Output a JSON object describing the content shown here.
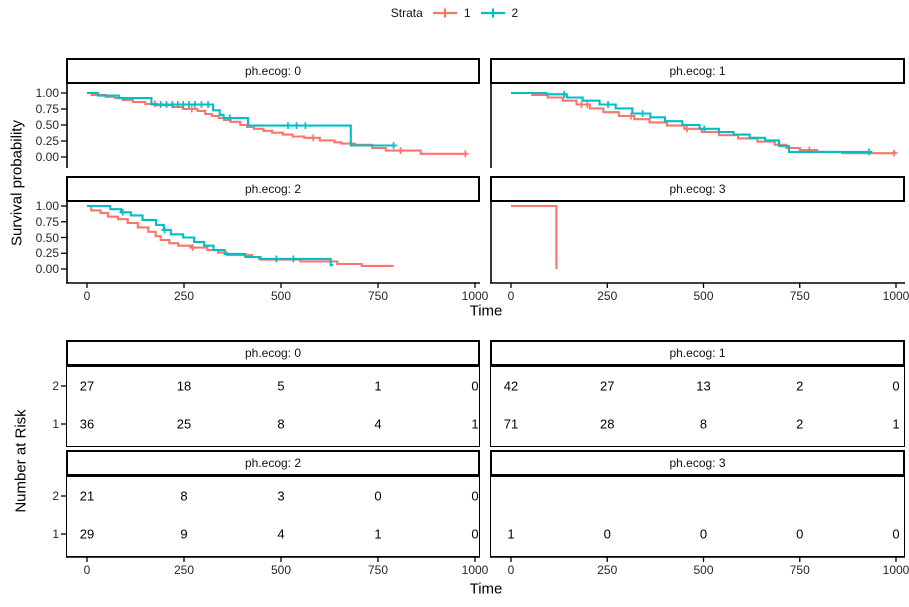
{
  "legend": {
    "title": "Strata",
    "items": [
      {
        "label": "1",
        "color": "#F8766D"
      },
      {
        "label": "2",
        "color": "#00BFC4"
      }
    ]
  },
  "axes": {
    "time_label": "Time",
    "time_ticks": [
      "0",
      "250",
      "500",
      "750",
      "1000"
    ],
    "time_tick_values": [
      0,
      250,
      500,
      750,
      1000
    ],
    "survival_label": "Survival probability",
    "survival_ticks": [
      "1.00",
      "0.75",
      "0.50",
      "0.25",
      "0.00"
    ],
    "survival_tick_values": [
      1.0,
      0.75,
      0.5,
      0.25,
      0.0
    ],
    "risk_label": "Number at Risk",
    "risk_row_labels": [
      "2",
      "1"
    ]
  },
  "chart_data": {
    "type": "line",
    "subtype": "kaplan-meier-faceted-with-risk-table",
    "x_range": [
      0,
      1022
    ],
    "y_range": [
      0,
      1
    ],
    "strata": [
      {
        "name": "1",
        "color": "#F8766D"
      },
      {
        "name": "2",
        "color": "#00BFC4"
      }
    ],
    "facets": [
      {
        "label": "ph.ecog: 0",
        "curves": [
          {
            "stratum": "1",
            "color": "#F8766D",
            "end_time": 980,
            "steps": [
              [
                0,
                1.0
              ],
              [
                12,
                0.97
              ],
              [
                48,
                0.94
              ],
              [
                72,
                0.92
              ],
              [
                92,
                0.89
              ],
              [
                118,
                0.86
              ],
              [
                150,
                0.83
              ],
              [
                180,
                0.81
              ],
              [
                222,
                0.78
              ],
              [
                248,
                0.75
              ],
              [
                285,
                0.72
              ],
              [
                305,
                0.67
              ],
              [
                322,
                0.64
              ],
              [
                340,
                0.61
              ],
              [
                353,
                0.58
              ],
              [
                370,
                0.55
              ],
              [
                395,
                0.5
              ],
              [
                412,
                0.47
              ],
              [
                430,
                0.44
              ],
              [
                455,
                0.41
              ],
              [
                477,
                0.38
              ],
              [
                505,
                0.35
              ],
              [
                530,
                0.32
              ],
              [
                560,
                0.3
              ],
              [
                600,
                0.26
              ],
              [
                638,
                0.23
              ],
              [
                655,
                0.21
              ],
              [
                690,
                0.19
              ],
              [
                735,
                0.14
              ],
              [
                770,
                0.1
              ],
              [
                860,
                0.05
              ]
            ],
            "censor_times": [
              175,
              270,
              583,
              808,
              975
            ]
          },
          {
            "stratum": "2",
            "color": "#00BFC4",
            "end_time": 792,
            "steps": [
              [
                0,
                1.0
              ],
              [
                28,
                0.96
              ],
              [
                82,
                0.92
              ],
              [
                166,
                0.82
              ],
              [
                325,
                0.73
              ],
              [
                342,
                0.66
              ],
              [
                352,
                0.61
              ],
              [
                415,
                0.49
              ],
              [
                680,
                0.18
              ]
            ],
            "censor_times": [
              190,
              205,
              220,
              234,
              248,
              263,
              278,
              295,
              312,
              368,
              518,
              540,
              563,
              790
            ]
          }
        ],
        "risk_table": [
          {
            "stratum": "2",
            "counts": [
              27,
              18,
              5,
              1,
              0
            ]
          },
          {
            "stratum": "1",
            "counts": [
              36,
              25,
              8,
              4,
              1
            ]
          }
        ]
      },
      {
        "label": "ph.ecog: 1",
        "curves": [
          {
            "stratum": "1",
            "color": "#F8766D",
            "end_time": 1000,
            "steps": [
              [
                0,
                1.0
              ],
              [
                55,
                0.97
              ],
              [
                95,
                0.93
              ],
              [
                135,
                0.88
              ],
              [
                170,
                0.82
              ],
              [
                205,
                0.76
              ],
              [
                240,
                0.7
              ],
              [
                280,
                0.64
              ],
              [
                320,
                0.59
              ],
              [
                360,
                0.54
              ],
              [
                405,
                0.49
              ],
              [
                450,
                0.44
              ],
              [
                495,
                0.39
              ],
              [
                540,
                0.34
              ],
              [
                590,
                0.29
              ],
              [
                640,
                0.24
              ],
              [
                685,
                0.19
              ],
              [
                715,
                0.14
              ],
              [
                750,
                0.11
              ],
              [
                795,
                0.08
              ],
              [
                860,
                0.06
              ]
            ],
            "censor_times": [
              183,
              198,
              312,
              457,
              775,
              995
            ]
          },
          {
            "stratum": "2",
            "color": "#00BFC4",
            "end_time": 938,
            "steps": [
              [
                0,
                1.0
              ],
              [
                92,
                0.98
              ],
              [
                145,
                0.93
              ],
              [
                186,
                0.88
              ],
              [
                230,
                0.82
              ],
              [
                272,
                0.76
              ],
              [
                315,
                0.68
              ],
              [
                362,
                0.62
              ],
              [
                400,
                0.56
              ],
              [
                445,
                0.5
              ],
              [
                490,
                0.44
              ],
              [
                540,
                0.39
              ],
              [
                578,
                0.35
              ],
              [
                620,
                0.3
              ],
              [
                660,
                0.26
              ],
              [
                696,
                0.17
              ],
              [
                722,
                0.08
              ]
            ],
            "censor_times": [
              138,
              252,
              342,
              502,
              930
            ]
          }
        ],
        "risk_table": [
          {
            "stratum": "2",
            "counts": [
              42,
              27,
              13,
              2,
              0
            ]
          },
          {
            "stratum": "1",
            "counts": [
              71,
              28,
              8,
              2,
              1
            ]
          }
        ]
      },
      {
        "label": "ph.ecog: 2",
        "curves": [
          {
            "stratum": "1",
            "color": "#F8766D",
            "end_time": 790,
            "steps": [
              [
                0,
                1.0
              ],
              [
                11,
                0.93
              ],
              [
                35,
                0.89
              ],
              [
                54,
                0.83
              ],
              [
                80,
                0.79
              ],
              [
                105,
                0.73
              ],
              [
                131,
                0.66
              ],
              [
                158,
                0.59
              ],
              [
                177,
                0.52
              ],
              [
                190,
                0.46
              ],
              [
                212,
                0.41
              ],
              [
                235,
                0.37
              ],
              [
                268,
                0.34
              ],
              [
                310,
                0.3
              ],
              [
                338,
                0.26
              ],
              [
                361,
                0.22
              ],
              [
                425,
                0.19
              ],
              [
                448,
                0.15
              ],
              [
                550,
                0.12
              ],
              [
                645,
                0.08
              ],
              [
                708,
                0.05
              ]
            ],
            "censor_times": [
              272
            ]
          },
          {
            "stratum": "2",
            "color": "#00BFC4",
            "end_time": 634,
            "steps": [
              [
                0,
                1.0
              ],
              [
                60,
                0.95
              ],
              [
                88,
                0.9
              ],
              [
                113,
                0.85
              ],
              [
                143,
                0.78
              ],
              [
                178,
                0.7
              ],
              [
                198,
                0.62
              ],
              [
                216,
                0.55
              ],
              [
                248,
                0.5
              ],
              [
                276,
                0.43
              ],
              [
                302,
                0.37
              ],
              [
                326,
                0.3
              ],
              [
                355,
                0.24
              ],
              [
                408,
                0.19
              ],
              [
                444,
                0.16
              ],
              [
                628,
                0.06
              ]
            ],
            "censor_times": [
              92,
              200,
              488,
              532
            ]
          }
        ],
        "risk_table": [
          {
            "stratum": "2",
            "counts": [
              21,
              8,
              3,
              0,
              0
            ]
          },
          {
            "stratum": "1",
            "counts": [
              29,
              9,
              4,
              1,
              0
            ]
          }
        ]
      },
      {
        "label": "ph.ecog: 3",
        "curves": [
          {
            "stratum": "1",
            "color": "#F8766D",
            "end_time": 118,
            "steps": [
              [
                0,
                1.0
              ],
              [
                118,
                0.0
              ]
            ],
            "censor_times": []
          }
        ],
        "risk_table": [
          {
            "stratum": "1",
            "counts": [
              1,
              0,
              0,
              0,
              0
            ]
          }
        ]
      }
    ]
  }
}
